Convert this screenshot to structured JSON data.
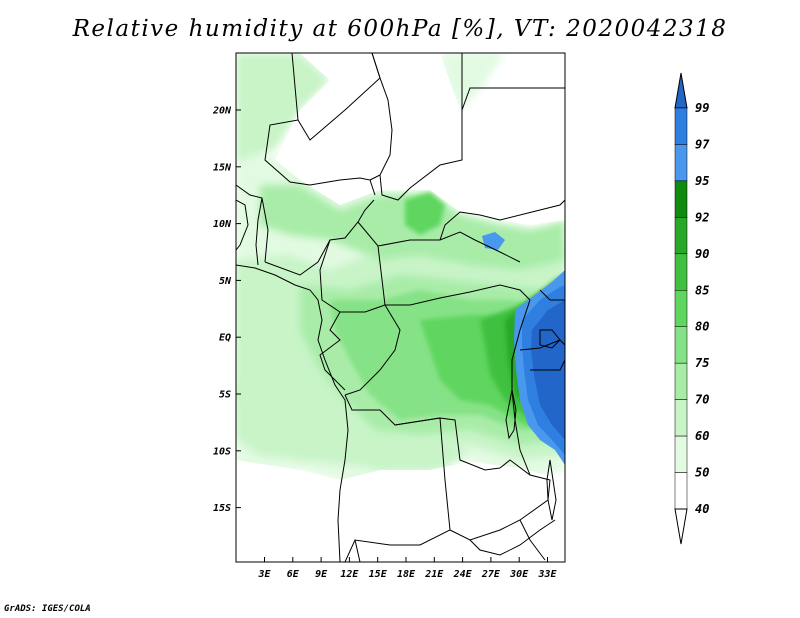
{
  "title": "Relative humidity at 600hPa [%], VT: 2020042318",
  "credit": "GrADS: IGES/COLA",
  "map": {
    "lat_labels": [
      "20N",
      "15N",
      "10N",
      "5N",
      "EQ",
      "5S",
      "10S",
      "15S"
    ],
    "lon_labels": [
      "3E",
      "6E",
      "9E",
      "12E",
      "15E",
      "18E",
      "21E",
      "24E",
      "27E",
      "30E",
      "33E"
    ]
  },
  "legend": {
    "labels": [
      "99",
      "97",
      "95",
      "92",
      "90",
      "85",
      "80",
      "75",
      "70",
      "60",
      "50",
      "40"
    ],
    "colors": [
      "#2166c8",
      "#2f7fe0",
      "#4a98ee",
      "#118a11",
      "#28a828",
      "#40c040",
      "#5fd65f",
      "#86e286",
      "#a8eca8",
      "#c8f4c8",
      "#e2fae2",
      "#ffffff"
    ]
  }
}
